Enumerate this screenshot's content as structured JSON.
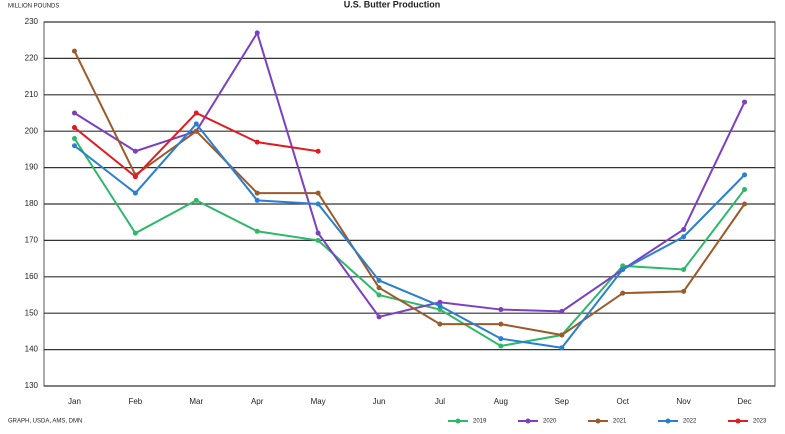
{
  "chart_data": {
    "type": "line",
    "title": "U.S. Butter Production",
    "y_label": "MILLION POUNDS",
    "source": "GRAPH, USDA, AMS, DMN",
    "categories": [
      "Jan",
      "Feb",
      "Mar",
      "Apr",
      "May",
      "Jun",
      "Jul",
      "Aug",
      "Sep",
      "Oct",
      "Nov",
      "Dec"
    ],
    "ylim": [
      130,
      230
    ],
    "yticks": [
      130,
      140,
      150,
      160,
      170,
      180,
      190,
      200,
      210,
      220,
      230
    ],
    "grid": true,
    "legend": "bottom-right",
    "series": [
      {
        "name": "2019",
        "color": "#2db86a",
        "values": [
          198,
          172,
          181,
          172.5,
          170,
          155,
          151,
          141,
          144,
          163,
          162,
          184
        ]
      },
      {
        "name": "2020",
        "color": "#7b3fc4",
        "values": [
          205,
          194.5,
          200,
          227,
          172,
          149,
          153,
          151,
          150.5,
          162,
          173,
          208
        ]
      },
      {
        "name": "2021",
        "color": "#9a5a2a",
        "values": [
          222,
          188,
          200,
          183,
          183,
          157,
          147,
          147,
          144,
          155.5,
          156,
          180
        ]
      },
      {
        "name": "2022",
        "color": "#2b7fd0",
        "values": [
          196,
          183,
          202,
          181,
          180,
          159,
          152,
          143,
          140.5,
          162,
          171,
          188
        ]
      },
      {
        "name": "2023",
        "color": "#e01b24",
        "values": [
          201,
          187.5,
          205,
          197,
          194.5,
          null,
          null,
          null,
          null,
          null,
          null,
          null
        ]
      }
    ]
  }
}
